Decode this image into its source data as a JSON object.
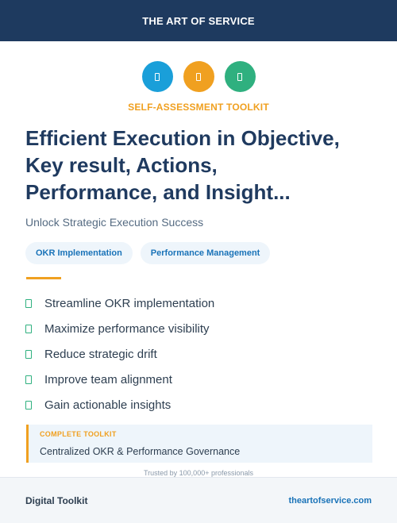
{
  "header": {
    "brand": "THE ART OF SERVICE"
  },
  "icons": [
    {
      "name": "doc-icon",
      "color": "#1a9fd9"
    },
    {
      "name": "doc-icon",
      "color": "#f0a020"
    },
    {
      "name": "doc-icon",
      "color": "#2fb07f"
    }
  ],
  "kicker": "SELF-ASSESSMENT TOOLKIT",
  "title_lines": [
    "Efficient Execution in Objective,",
    "Key result, Actions,",
    "Performance, and Insight..."
  ],
  "subtitle": "Unlock Strategic Execution Success",
  "tags": [
    "OKR Implementation",
    "Performance Management"
  ],
  "benefits": [
    "Streamline OKR implementation",
    "Maximize performance visibility",
    "Reduce strategic drift",
    "Improve team alignment",
    "Gain actionable insights"
  ],
  "callout": {
    "kicker": "COMPLETE TOOLKIT",
    "text": "Centralized OKR & Performance Governance"
  },
  "trusted": "Trusted by 100,000+ professionals",
  "footer": {
    "left": "Digital Toolkit",
    "right": "theartofservice.com"
  },
  "colors": {
    "navy": "#1e3a5f",
    "orange": "#f0a020",
    "blue": "#1a9fd9",
    "green": "#2fb07f"
  }
}
